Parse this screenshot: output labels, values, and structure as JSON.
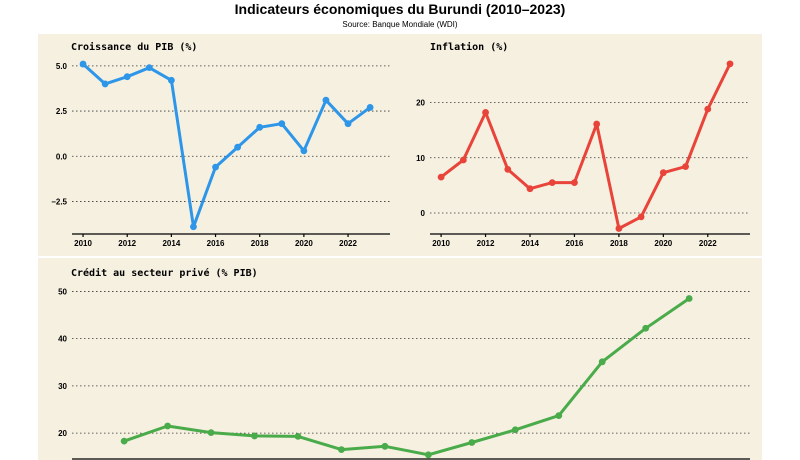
{
  "figure": {
    "title": "Indicateurs économiques du Burundi (2010–2023)",
    "subtitle": "Source: Banque Mondiale (WDI)"
  },
  "colors": {
    "panel_background": "#f6f0e1",
    "gdp": "#2e96e8",
    "inflation": "#e8443a",
    "credit": "#4aab4a"
  },
  "chart_data": [
    {
      "id": "gdp",
      "type": "line",
      "title": "Croissance du PIB (%)",
      "x": [
        2010,
        2011,
        2012,
        2013,
        2014,
        2015,
        2016,
        2017,
        2018,
        2019,
        2020,
        2021,
        2022,
        2023
      ],
      "y": [
        5.1,
        4.0,
        4.4,
        4.9,
        4.2,
        -3.9,
        -0.6,
        0.5,
        1.6,
        1.8,
        0.3,
        3.1,
        1.8,
        2.7
      ],
      "xticks": [
        2010,
        2012,
        2014,
        2016,
        2018,
        2020,
        2022
      ],
      "yticks": [
        -2.5,
        0.0,
        2.5,
        5.0
      ],
      "ytick_labels": [
        "−2.5",
        "0.0",
        "2.5",
        "5.0"
      ],
      "xlim": [
        2009.5,
        2023.9
      ],
      "ylim": [
        -4.3,
        5.6
      ],
      "grid": "horizontal dotted",
      "color": "#2e96e8"
    },
    {
      "id": "inflation",
      "type": "line",
      "title": "Inflation (%)",
      "x": [
        2010,
        2011,
        2012,
        2013,
        2014,
        2015,
        2016,
        2017,
        2018,
        2019,
        2020,
        2021,
        2022,
        2023
      ],
      "y": [
        6.5,
        9.6,
        18.2,
        7.9,
        4.4,
        5.5,
        5.5,
        16.1,
        -2.8,
        -0.7,
        7.3,
        8.4,
        18.8,
        27.0
      ],
      "xticks": [
        2010,
        2012,
        2014,
        2016,
        2018,
        2020,
        2022
      ],
      "yticks": [
        0,
        10,
        20
      ],
      "ytick_labels": [
        "0",
        "10",
        "20"
      ],
      "xlim": [
        2009.5,
        2023.9
      ],
      "ylim": [
        -3.8,
        28.6
      ],
      "grid": "horizontal dotted",
      "color": "#e8443a"
    },
    {
      "id": "credit",
      "type": "line",
      "title": "Crédit au secteur privé (% PIB)",
      "x": [
        2010,
        2011,
        2012,
        2013,
        2014,
        2015,
        2016,
        2017,
        2018,
        2019,
        2020,
        2021,
        2022,
        2023
      ],
      "y": [
        18.3,
        21.5,
        20.1,
        19.4,
        19.3,
        16.5,
        17.2,
        15.4,
        18.0,
        20.7,
        23.7,
        35.1,
        42.2,
        48.5
      ],
      "xticks": [],
      "yticks": [
        20,
        30,
        40,
        50
      ],
      "ytick_labels": [
        "20",
        "30",
        "40",
        "50"
      ],
      "xlim": [
        2008.8,
        2024.4
      ],
      "ylim": [
        14.3,
        52.0
      ],
      "grid": "horizontal dotted",
      "color": "#4aab4a"
    }
  ]
}
